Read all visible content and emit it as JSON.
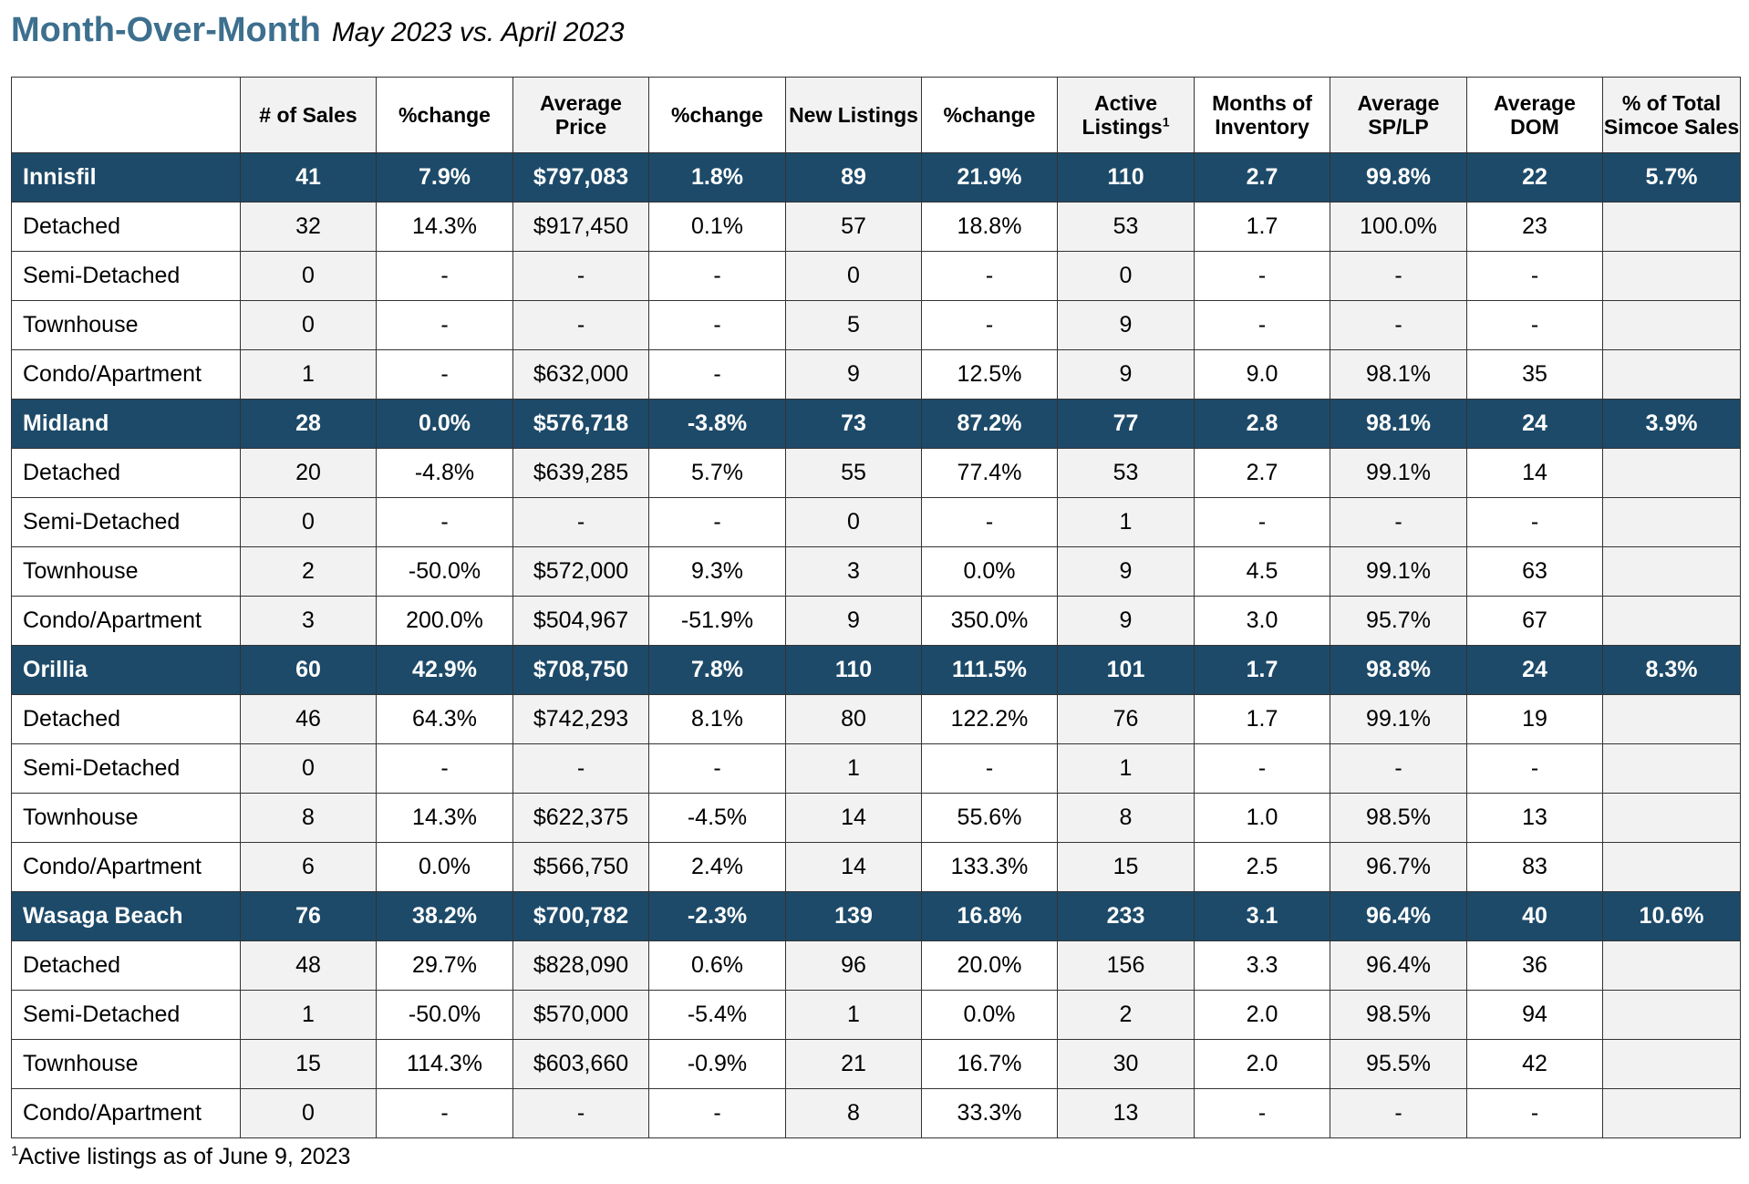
{
  "title": {
    "main": "Month-Over-Month",
    "sub": "May 2023 vs. April 2023"
  },
  "columns": [
    "",
    "# of Sales",
    "%change",
    "Average Price",
    "%change",
    "New Listings",
    "%change",
    "Active Listings",
    "Months of Inventory",
    "Average SP/LP",
    "Average DOM",
    "% of Total Simcoe Sales"
  ],
  "columns_sup": {
    "active_listings": "1"
  },
  "groups": [
    {
      "summary": [
        "Innisfil",
        "41",
        "7.9%",
        "$797,083",
        "1.8%",
        "89",
        "21.9%",
        "110",
        "2.7",
        "99.8%",
        "22",
        "5.7%"
      ],
      "rows": [
        [
          "Detached",
          "32",
          "14.3%",
          "$917,450",
          "0.1%",
          "57",
          "18.8%",
          "53",
          "1.7",
          "100.0%",
          "23",
          ""
        ],
        [
          "Semi-Detached",
          "0",
          "-",
          "-",
          "-",
          "0",
          "-",
          "0",
          "-",
          "-",
          "-",
          ""
        ],
        [
          "Townhouse",
          "0",
          "-",
          "-",
          "-",
          "5",
          "-",
          "9",
          "-",
          "-",
          "-",
          ""
        ],
        [
          "Condo/Apartment",
          "1",
          "-",
          "$632,000",
          "-",
          "9",
          "12.5%",
          "9",
          "9.0",
          "98.1%",
          "35",
          ""
        ]
      ]
    },
    {
      "summary": [
        "Midland",
        "28",
        "0.0%",
        "$576,718",
        "-3.8%",
        "73",
        "87.2%",
        "77",
        "2.8",
        "98.1%",
        "24",
        "3.9%"
      ],
      "rows": [
        [
          "Detached",
          "20",
          "-4.8%",
          "$639,285",
          "5.7%",
          "55",
          "77.4%",
          "53",
          "2.7",
          "99.1%",
          "14",
          ""
        ],
        [
          "Semi-Detached",
          "0",
          "-",
          "-",
          "-",
          "0",
          "-",
          "1",
          "-",
          "-",
          "-",
          ""
        ],
        [
          "Townhouse",
          "2",
          "-50.0%",
          "$572,000",
          "9.3%",
          "3",
          "0.0%",
          "9",
          "4.5",
          "99.1%",
          "63",
          ""
        ],
        [
          "Condo/Apartment",
          "3",
          "200.0%",
          "$504,967",
          "-51.9%",
          "9",
          "350.0%",
          "9",
          "3.0",
          "95.7%",
          "67",
          ""
        ]
      ]
    },
    {
      "summary": [
        "Orillia",
        "60",
        "42.9%",
        "$708,750",
        "7.8%",
        "110",
        "111.5%",
        "101",
        "1.7",
        "98.8%",
        "24",
        "8.3%"
      ],
      "rows": [
        [
          "Detached",
          "46",
          "64.3%",
          "$742,293",
          "8.1%",
          "80",
          "122.2%",
          "76",
          "1.7",
          "99.1%",
          "19",
          ""
        ],
        [
          "Semi-Detached",
          "0",
          "-",
          "-",
          "-",
          "1",
          "-",
          "1",
          "-",
          "-",
          "-",
          ""
        ],
        [
          "Townhouse",
          "8",
          "14.3%",
          "$622,375",
          "-4.5%",
          "14",
          "55.6%",
          "8",
          "1.0",
          "98.5%",
          "13",
          ""
        ],
        [
          "Condo/Apartment",
          "6",
          "0.0%",
          "$566,750",
          "2.4%",
          "14",
          "133.3%",
          "15",
          "2.5",
          "96.7%",
          "83",
          ""
        ]
      ]
    },
    {
      "summary": [
        "Wasaga Beach",
        "76",
        "38.2%",
        "$700,782",
        "-2.3%",
        "139",
        "16.8%",
        "233",
        "3.1",
        "96.4%",
        "40",
        "10.6%"
      ],
      "rows": [
        [
          "Detached",
          "48",
          "29.7%",
          "$828,090",
          "0.6%",
          "96",
          "20.0%",
          "156",
          "3.3",
          "96.4%",
          "36",
          ""
        ],
        [
          "Semi-Detached",
          "1",
          "-50.0%",
          "$570,000",
          "-5.4%",
          "1",
          "0.0%",
          "2",
          "2.0",
          "98.5%",
          "94",
          ""
        ],
        [
          "Townhouse",
          "15",
          "114.3%",
          "$603,660",
          "-0.9%",
          "21",
          "16.7%",
          "30",
          "2.0",
          "95.5%",
          "42",
          ""
        ],
        [
          "Condo/Apartment",
          "0",
          "-",
          "-",
          "-",
          "8",
          "33.3%",
          "13",
          "-",
          "-",
          "-",
          ""
        ]
      ]
    }
  ],
  "footnote": {
    "sup": "1",
    "text": "Active listings as of June 9, 2023"
  }
}
